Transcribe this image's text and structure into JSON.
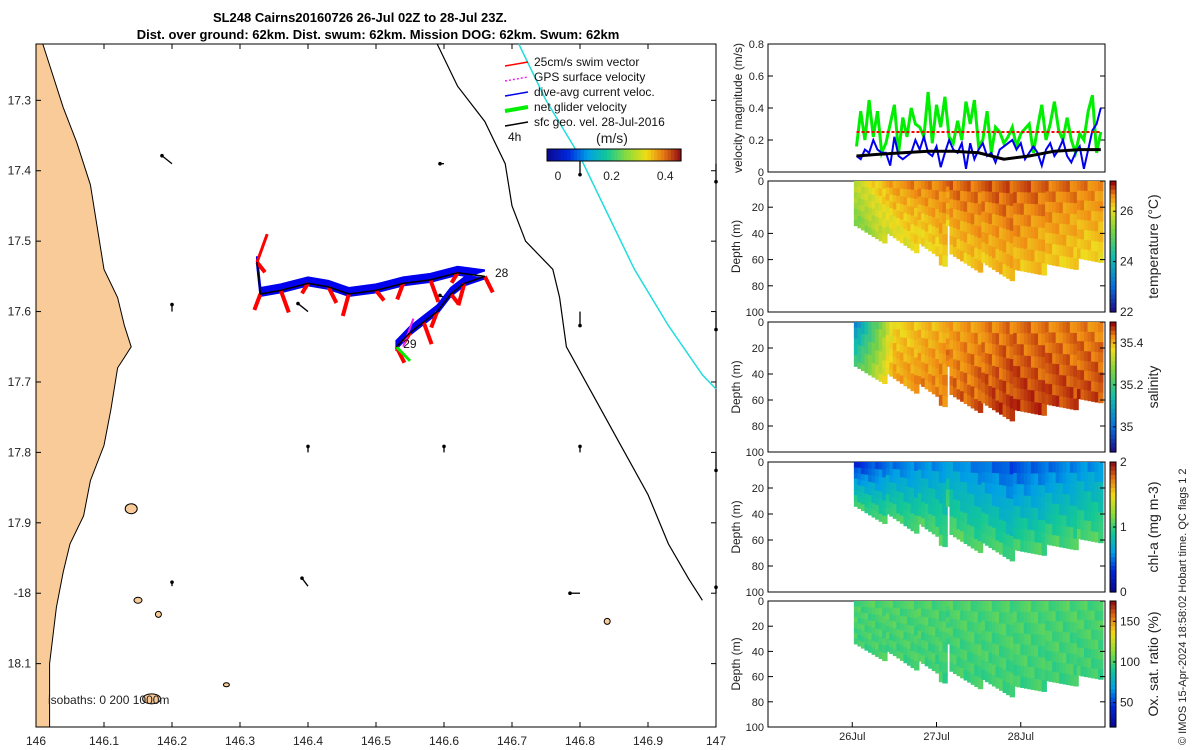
{
  "title": {
    "line1": "SL248 Cairns20160726 26-Jul 02Z to 28-Jul 23Z.",
    "line2": "Dist. over ground: 62km. Dist. swum: 62km. Mission DOG: 62km. Swum: 62km"
  },
  "colors": {
    "coast": "#f9cb98",
    "swim": "#ff0000",
    "gps": "#ee22ee",
    "current": "#0000ee",
    "net": "#00ee00",
    "geo": "#000000",
    "track_cyan": "#22dddd"
  },
  "chart_data": [
    {
      "id": "map",
      "type": "scatter",
      "title": "SL248 Cairns20160726 26-Jul 02Z to 28-Jul 23Z.",
      "xlabel": "",
      "ylabel": "",
      "xlim": [
        146.0,
        147.0
      ],
      "ylim": [
        -18.19,
        -17.22
      ],
      "x_ticks": [
        146,
        146.1,
        146.2,
        146.3,
        146.4,
        146.5,
        146.6,
        146.7,
        146.8,
        146.9,
        147
      ],
      "x_tick_labels": [
        "146",
        "146.1",
        "146.2",
        "146.3",
        "146.4",
        "146.5",
        "146.6",
        "146.7",
        "146.8",
        "146.9",
        "147"
      ],
      "y_ticks": [
        -17.3,
        -17.4,
        -17.5,
        -17.6,
        -17.7,
        -17.8,
        -17.9,
        -18.0,
        -18.1
      ],
      "y_tick_labels": [
        "17.3",
        "17.4",
        "17.5",
        "17.6",
        "17.7",
        "17.8",
        "17.9",
        "-18",
        "18.1"
      ],
      "legend": {
        "placement": "top-right",
        "entries": [
          {
            "label": "25cm/s swim vector",
            "color": "#ff0000",
            "style": "arrow"
          },
          {
            "label": "GPS surface velocity",
            "color": "#ee22ee",
            "style": "dotted-arrow"
          },
          {
            "label": "dive-avg current veloc.",
            "color": "#0000ee",
            "style": "arrow"
          },
          {
            "label": "net glider velocity",
            "color": "#00ee00",
            "style": "thick-arrow"
          },
          {
            "label": "sfc geo. vel. 28-Jul-2016",
            "color": "#000000",
            "style": "arrow"
          }
        ],
        "time_label": "4h"
      },
      "colorbar": {
        "label": "(m/s)",
        "ticks": [
          0,
          0.2,
          0.4
        ],
        "tick_labels": [
          "0",
          "0.2",
          "0.4"
        ],
        "range": [
          0,
          0.5
        ]
      },
      "isobaths_label": "isobaths: 0    200  1000m",
      "track": [
        [
          146.325,
          -17.53
        ],
        [
          146.33,
          -17.575
        ],
        [
          146.36,
          -17.57
        ],
        [
          146.4,
          -17.56
        ],
        [
          146.43,
          -17.565
        ],
        [
          146.46,
          -17.575
        ],
        [
          146.5,
          -17.57
        ],
        [
          146.54,
          -17.56
        ],
        [
          146.58,
          -17.555
        ],
        [
          146.62,
          -17.545
        ],
        [
          146.66,
          -17.55
        ],
        [
          146.63,
          -17.56
        ],
        [
          146.61,
          -17.575
        ],
        [
          146.59,
          -17.6
        ],
        [
          146.57,
          -17.615
        ],
        [
          146.55,
          -17.63
        ],
        [
          146.53,
          -17.65
        ]
      ],
      "annotations": [
        {
          "text": "28",
          "x": 146.675,
          "y": -17.551
        },
        {
          "text": "29",
          "x": 146.54,
          "y": -17.652
        }
      ],
      "isobath_1000m": [
        [
          146.59,
          -17.22
        ],
        [
          146.62,
          -17.28
        ],
        [
          146.66,
          -17.33
        ],
        [
          146.69,
          -17.39
        ],
        [
          146.7,
          -17.45
        ],
        [
          146.72,
          -17.5
        ],
        [
          146.76,
          -17.54
        ],
        [
          146.77,
          -17.58
        ],
        [
          146.78,
          -17.65
        ],
        [
          146.82,
          -17.72
        ],
        [
          146.86,
          -17.79
        ],
        [
          146.9,
          -17.86
        ],
        [
          146.93,
          -17.93
        ],
        [
          146.96,
          -17.98
        ],
        [
          146.98,
          -18.01
        ]
      ],
      "cyan_track": [
        [
          146.71,
          -17.22
        ],
        [
          146.75,
          -17.3
        ],
        [
          146.8,
          -17.38
        ],
        [
          146.84,
          -17.46
        ],
        [
          146.88,
          -17.54
        ],
        [
          146.93,
          -17.62
        ],
        [
          146.98,
          -17.69
        ],
        [
          147.0,
          -17.71
        ]
      ]
    },
    {
      "id": "velocity",
      "type": "line",
      "xlabel": "",
      "ylabel": "velocity magnitude (m/s)",
      "ylim": [
        0,
        0.8
      ],
      "yticks": [
        0,
        0.2,
        0.4,
        0.6,
        0.8
      ],
      "ytick_labels": [
        "0",
        "0.2",
        "0.4",
        "0.6",
        "0.8"
      ],
      "xlim": [
        25.0,
        29.0
      ],
      "series": [
        {
          "name": "net glider velocity",
          "color": "#00ee00",
          "x": [
            26.05,
            26.1,
            26.15,
            26.2,
            26.25,
            26.3,
            26.35,
            26.4,
            26.45,
            26.5,
            26.55,
            26.6,
            26.65,
            26.7,
            26.75,
            26.8,
            26.85,
            26.9,
            26.95,
            27.0,
            27.05,
            27.1,
            27.15,
            27.2,
            27.25,
            27.3,
            27.35,
            27.4,
            27.45,
            27.5,
            27.55,
            27.6,
            27.65,
            27.7,
            27.75,
            27.8,
            27.85,
            27.9,
            27.95,
            28.0,
            28.05,
            28.1,
            28.15,
            28.2,
            28.25,
            28.3,
            28.35,
            28.4,
            28.45,
            28.5,
            28.55,
            28.6,
            28.65,
            28.7,
            28.75,
            28.8,
            28.85,
            28.9,
            28.95
          ],
          "values": [
            0.16,
            0.38,
            0.2,
            0.45,
            0.22,
            0.38,
            0.12,
            0.18,
            0.3,
            0.42,
            0.12,
            0.34,
            0.22,
            0.4,
            0.3,
            0.28,
            0.22,
            0.5,
            0.18,
            0.42,
            0.28,
            0.47,
            0.22,
            0.18,
            0.32,
            0.2,
            0.44,
            0.3,
            0.45,
            0.16,
            0.2,
            0.38,
            0.12,
            0.28,
            0.25,
            0.18,
            0.22,
            0.28,
            0.16,
            0.24,
            0.27,
            0.3,
            0.12,
            0.28,
            0.42,
            0.2,
            0.3,
            0.44,
            0.26,
            0.2,
            0.34,
            0.2,
            0.12,
            0.24,
            0.2,
            0.38,
            0.48,
            0.12,
            0.25
          ]
        },
        {
          "name": "dive-avg current veloc.",
          "color": "#0000ee",
          "x": [
            26.05,
            26.1,
            26.15,
            26.2,
            26.25,
            26.3,
            26.35,
            26.4,
            26.45,
            26.5,
            26.55,
            26.6,
            26.65,
            26.7,
            26.75,
            26.8,
            26.85,
            26.9,
            26.95,
            27.0,
            27.05,
            27.1,
            27.15,
            27.2,
            27.25,
            27.3,
            27.35,
            27.4,
            27.45,
            27.5,
            27.55,
            27.6,
            27.65,
            27.7,
            27.75,
            27.8,
            27.85,
            27.9,
            27.95,
            28.0,
            28.05,
            28.1,
            28.15,
            28.2,
            28.25,
            28.3,
            28.35,
            28.4,
            28.45,
            28.5,
            28.55,
            28.6,
            28.65,
            28.7,
            28.75,
            28.8,
            28.85,
            28.9,
            28.95
          ],
          "values": [
            0.1,
            0.08,
            0.14,
            0.12,
            0.2,
            0.14,
            0.12,
            0.12,
            0.04,
            0.22,
            0.1,
            0.08,
            0.1,
            0.12,
            0.2,
            0.14,
            0.22,
            0.12,
            0.1,
            0.16,
            0.03,
            0.12,
            0.2,
            0.14,
            0.12,
            0.18,
            0.02,
            0.18,
            0.08,
            0.14,
            0.18,
            0.1,
            0.12,
            0.06,
            0.14,
            0.16,
            0.18,
            0.2,
            0.14,
            0.18,
            0.08,
            0.12,
            0.16,
            0.12,
            0.04,
            0.14,
            0.18,
            0.1,
            0.14,
            0.2,
            0.1,
            0.06,
            0.12,
            0.16,
            0.02,
            0.14,
            0.26,
            0.3,
            0.4
          ]
        },
        {
          "name": "sfc geo. vel.",
          "color": "#000000",
          "x": [
            26.05,
            26.3,
            26.6,
            26.9,
            27.2,
            27.5,
            27.8,
            28.1,
            28.4,
            28.7,
            28.95
          ],
          "values": [
            0.1,
            0.11,
            0.12,
            0.13,
            0.13,
            0.12,
            0.08,
            0.1,
            0.13,
            0.14,
            0.14
          ]
        },
        {
          "name": "25cm/s swim vector",
          "color": "#ff0000",
          "x": [
            26.05,
            28.95
          ],
          "values": [
            0.25,
            0.25
          ]
        }
      ]
    },
    {
      "id": "temperature",
      "type": "heatmap",
      "ylabel": "Depth (m)",
      "clabel": "temperature (°C)",
      "ylim": [
        100,
        0
      ],
      "yticks": [
        0,
        20,
        40,
        60,
        80,
        100
      ],
      "clim": [
        22,
        27.2
      ],
      "cticks": [
        22,
        24,
        26
      ],
      "values_by_time": [
        {
          "x": 26.05,
          "surface": 25.8,
          "bottom": 25.2,
          "max_depth": 38
        },
        {
          "x": 26.5,
          "surface": 26.6,
          "bottom": 26.0,
          "max_depth": 45
        },
        {
          "x": 27.2,
          "surface": 26.8,
          "bottom": 26.3,
          "max_depth": 60
        },
        {
          "x": 27.9,
          "surface": 26.9,
          "bottom": 26.4,
          "max_depth": 72
        },
        {
          "x": 28.95,
          "surface": 26.7,
          "bottom": 26.2,
          "max_depth": 60
        }
      ]
    },
    {
      "id": "salinity",
      "type": "heatmap",
      "ylabel": "Depth (m)",
      "clabel": "salinity",
      "ylim": [
        100,
        0
      ],
      "yticks": [
        0,
        20,
        40,
        60,
        80,
        100
      ],
      "clim": [
        34.88,
        35.5
      ],
      "cticks": [
        35,
        35.2,
        35.4
      ],
      "values_by_time": [
        {
          "x": 26.05,
          "surface": 35.05,
          "bottom": 35.2,
          "max_depth": 38
        },
        {
          "x": 26.5,
          "surface": 35.38,
          "bottom": 35.42,
          "max_depth": 45
        },
        {
          "x": 27.2,
          "surface": 35.42,
          "bottom": 35.45,
          "max_depth": 60
        },
        {
          "x": 27.9,
          "surface": 35.45,
          "bottom": 35.48,
          "max_depth": 72
        },
        {
          "x": 28.95,
          "surface": 35.44,
          "bottom": 35.47,
          "max_depth": 60
        }
      ]
    },
    {
      "id": "chla",
      "type": "heatmap",
      "ylabel": "Depth (m)",
      "clabel": "chl-a (mg m-3)",
      "ylim": [
        100,
        0
      ],
      "yticks": [
        0,
        20,
        40,
        60,
        80,
        100
      ],
      "clim": [
        0,
        2
      ],
      "cticks": [
        0,
        1,
        2
      ],
      "values_by_time": [
        {
          "x": 26.05,
          "surface": 0.3,
          "bottom": 1.0,
          "max_depth": 38
        },
        {
          "x": 26.5,
          "surface": 0.5,
          "bottom": 1.0,
          "max_depth": 45
        },
        {
          "x": 27.2,
          "surface": 0.6,
          "bottom": 1.05,
          "max_depth": 60
        },
        {
          "x": 27.9,
          "surface": 0.4,
          "bottom": 1.0,
          "max_depth": 72
        },
        {
          "x": 28.95,
          "surface": 0.6,
          "bottom": 1.05,
          "max_depth": 60
        }
      ]
    },
    {
      "id": "oxygen",
      "type": "heatmap",
      "ylabel": "Depth (m)",
      "clabel": "Ox. sat. ratio (%)",
      "ylim": [
        100,
        0
      ],
      "yticks": [
        0,
        20,
        40,
        60,
        80,
        100
      ],
      "clim": [
        20,
        175
      ],
      "cticks": [
        50,
        100,
        150
      ],
      "xticks": [
        26,
        27,
        28
      ],
      "xtick_labels": [
        "26Jul",
        "27Jul",
        "28Jul"
      ],
      "values_by_time": [
        {
          "x": 26.05,
          "surface": 100,
          "bottom": 98,
          "max_depth": 38
        },
        {
          "x": 26.5,
          "surface": 101,
          "bottom": 99,
          "max_depth": 45
        },
        {
          "x": 27.2,
          "surface": 100,
          "bottom": 98,
          "max_depth": 60
        },
        {
          "x": 27.9,
          "surface": 100,
          "bottom": 98,
          "max_depth": 72
        },
        {
          "x": 28.95,
          "surface": 100,
          "bottom": 98,
          "max_depth": 60
        }
      ]
    }
  ],
  "footer": {
    "text": "© IMOS 15-Apr-2024 18:58:02 Hobart time. QC flags 1  2"
  }
}
